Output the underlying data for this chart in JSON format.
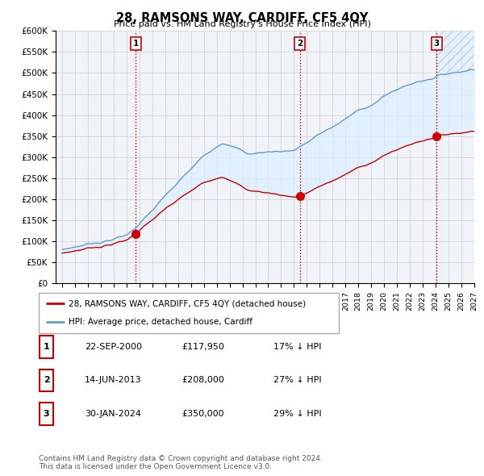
{
  "title": "28, RAMSONS WAY, CARDIFF, CF5 4QY",
  "subtitle": "Price paid vs. HM Land Registry's House Price Index (HPI)",
  "ylabel_ticks": [
    "£0",
    "£50K",
    "£100K",
    "£150K",
    "£200K",
    "£250K",
    "£300K",
    "£350K",
    "£400K",
    "£450K",
    "£500K",
    "£550K",
    "£600K"
  ],
  "ytick_values": [
    0,
    50000,
    100000,
    150000,
    200000,
    250000,
    300000,
    350000,
    400000,
    450000,
    500000,
    550000,
    600000
  ],
  "xmin": 1994.5,
  "xmax": 2027.0,
  "ymin": 0,
  "ymax": 600000,
  "purchases": [
    {
      "year": 2000.72,
      "price": 117950,
      "label": "1"
    },
    {
      "year": 2013.45,
      "price": 208000,
      "label": "2"
    },
    {
      "year": 2024.08,
      "price": 350000,
      "label": "3"
    }
  ],
  "purchase_vline_color": "#cc0000",
  "legend_label_red": "28, RAMSONS WAY, CARDIFF, CF5 4QY (detached house)",
  "legend_label_blue": "HPI: Average price, detached house, Cardiff",
  "table_rows": [
    {
      "num": "1",
      "date": "22-SEP-2000",
      "price": "£117,950",
      "hpi": "17% ↓ HPI"
    },
    {
      "num": "2",
      "date": "14-JUN-2013",
      "price": "£208,000",
      "hpi": "27% ↓ HPI"
    },
    {
      "num": "3",
      "date": "30-JAN-2024",
      "price": "£350,000",
      "hpi": "29% ↓ HPI"
    }
  ],
  "footnote": "Contains HM Land Registry data © Crown copyright and database right 2024.\nThis data is licensed under the Open Government Licence v3.0.",
  "line_red_color": "#cc0000",
  "line_blue_color": "#6699cc",
  "fill_blue_color": "#ddeeff",
  "grid_color": "#cccccc",
  "plot_bg_color": "#f0f4f8"
}
